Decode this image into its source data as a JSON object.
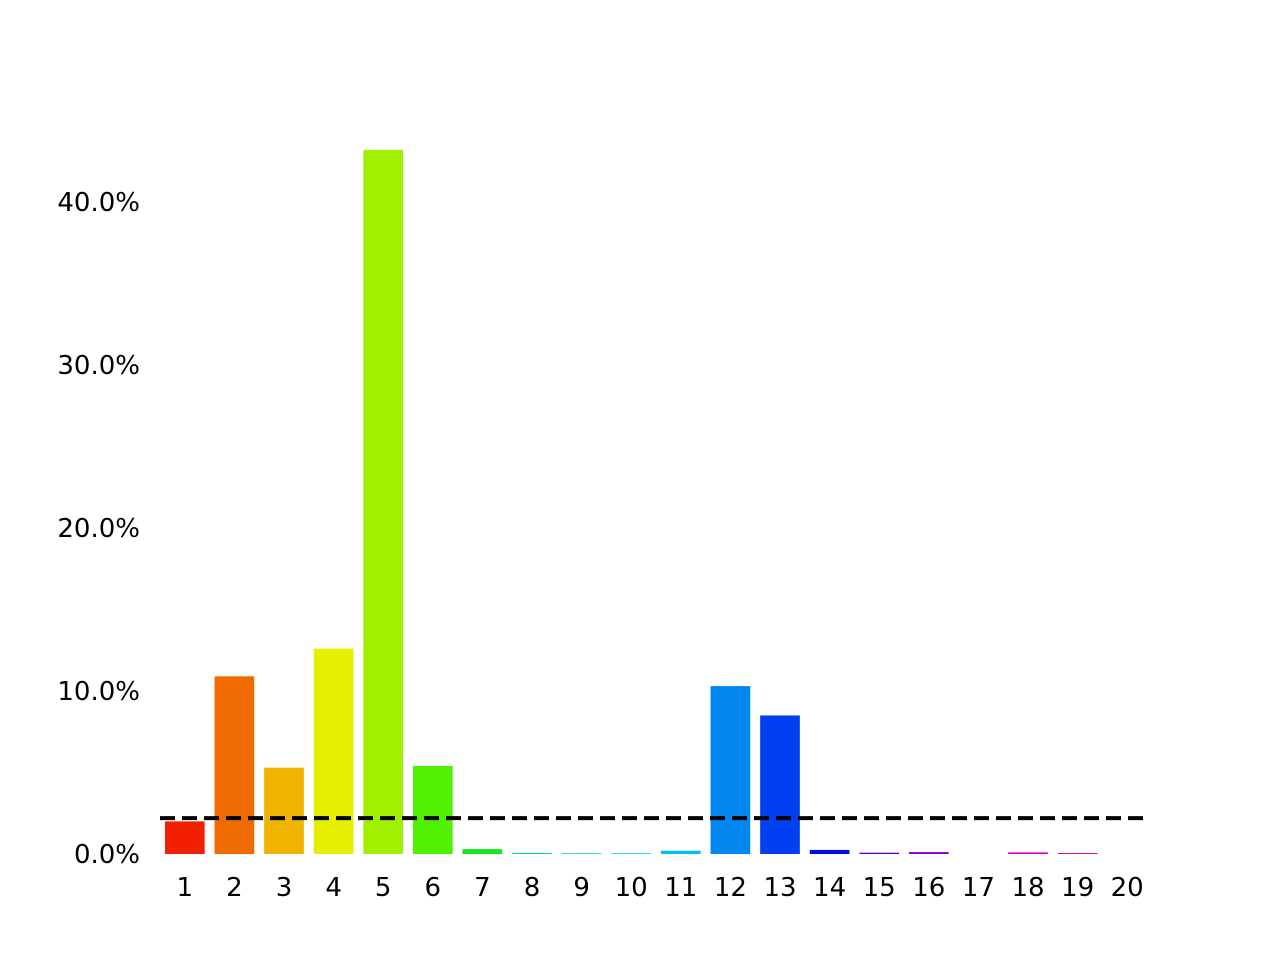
{
  "chart_data": {
    "type": "bar",
    "categories": [
      "1",
      "2",
      "3",
      "4",
      "5",
      "6",
      "7",
      "8",
      "9",
      "10",
      "11",
      "12",
      "13",
      "14",
      "15",
      "16",
      "17",
      "18",
      "19",
      "20"
    ],
    "values": [
      2.0,
      10.9,
      5.3,
      12.6,
      43.2,
      5.4,
      0.3,
      0.06,
      0.05,
      0.05,
      0.2,
      10.3,
      8.5,
      0.25,
      0.08,
      0.12,
      0.0,
      0.1,
      0.06,
      0.0
    ],
    "colors": [
      "#f02000",
      "#f06c00",
      "#f0b400",
      "#e4f000",
      "#a0f000",
      "#50f000",
      "#18e818",
      "#00e070",
      "#00e0b0",
      "#00d8e0",
      "#00c0f0",
      "#0088f0",
      "#0040f0",
      "#0010d8",
      "#6000c0",
      "#9000d0",
      "#c000d0",
      "#d800c0",
      "#e000a0",
      "#e00070"
    ],
    "reference_line": {
      "value": 2.2,
      "style": "dashed",
      "color": "#000000"
    },
    "yticks": [
      0,
      10,
      20,
      30,
      40
    ],
    "ytick_labels": [
      "0.0%",
      "10.0%",
      "20.0%",
      "30.0%",
      "40.0%"
    ],
    "ylim": [
      0,
      46
    ],
    "title": "",
    "xlabel": "",
    "ylabel": "",
    "grid": false,
    "legend": "none"
  }
}
